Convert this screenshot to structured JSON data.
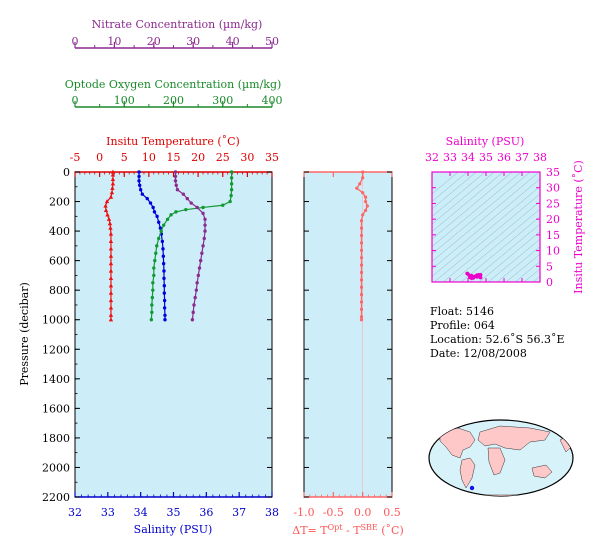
{
  "chart_data": [
    {
      "type": "line",
      "panel": "main-profile",
      "ylabel": "Pressure (decibar)",
      "ylim": [
        2200,
        0
      ],
      "yticks": [
        0,
        200,
        400,
        600,
        800,
        1000,
        1200,
        1400,
        1600,
        1800,
        2000,
        2200
      ],
      "axes": {
        "nitrate": {
          "label": "Nitrate Concentration (µm/kg)",
          "range": [
            0,
            50
          ],
          "ticks": [
            0,
            10,
            20,
            30,
            40,
            50
          ],
          "color": "#8b2a8f"
        },
        "oxygen": {
          "label": "Optode Oxygen Concentration (µm/kg)",
          "range": [
            0,
            400
          ],
          "ticks": [
            0,
            100,
            200,
            300,
            400
          ],
          "color": "#1a8a2a"
        },
        "temperature": {
          "label": "Insitu Temperature (˚C)",
          "range": [
            -5,
            35
          ],
          "ticks": [
            -5,
            0,
            5,
            10,
            15,
            20,
            25,
            30,
            35
          ],
          "color": "#dd0000"
        },
        "salinity": {
          "label": "Salinity (PSU)",
          "range": [
            32,
            38
          ],
          "ticks": [
            32,
            33,
            34,
            35,
            36,
            37,
            38
          ],
          "color": "#0000cc"
        }
      },
      "series": [
        {
          "axis": "temperature",
          "color": "#ee1111",
          "marker": "triangle",
          "points": [
            [
              2.7,
              0
            ],
            [
              2.7,
              20
            ],
            [
              2.7,
              50
            ],
            [
              2.7,
              80
            ],
            [
              2.6,
              110
            ],
            [
              2.5,
              140
            ],
            [
              2.3,
              170
            ],
            [
              1.5,
              200
            ],
            [
              1.2,
              230
            ],
            [
              1.3,
              260
            ],
            [
              1.6,
              290
            ],
            [
              1.9,
              320
            ],
            [
              2.1,
              350
            ],
            [
              2.2,
              380
            ],
            [
              2.3,
              420
            ],
            [
              2.3,
              470
            ],
            [
              2.3,
              520
            ],
            [
              2.3,
              570
            ],
            [
              2.3,
              620
            ],
            [
              2.3,
              670
            ],
            [
              2.3,
              720
            ],
            [
              2.3,
              770
            ],
            [
              2.3,
              820
            ],
            [
              2.3,
              870
            ],
            [
              2.3,
              920
            ],
            [
              2.3,
              970
            ],
            [
              2.3,
              1000
            ]
          ]
        },
        {
          "axis": "salinity",
          "color": "#0000dd",
          "marker": "circle",
          "points": [
            [
              33.95,
              0
            ],
            [
              33.95,
              30
            ],
            [
              33.95,
              60
            ],
            [
              33.97,
              90
            ],
            [
              34.0,
              120
            ],
            [
              34.05,
              150
            ],
            [
              34.2,
              180
            ],
            [
              34.3,
              210
            ],
            [
              34.38,
              240
            ],
            [
              34.42,
              270
            ],
            [
              34.5,
              300
            ],
            [
              34.55,
              340
            ],
            [
              34.6,
              380
            ],
            [
              34.63,
              420
            ],
            [
              34.66,
              470
            ],
            [
              34.68,
              520
            ],
            [
              34.69,
              570
            ],
            [
              34.7,
              620
            ],
            [
              34.71,
              670
            ],
            [
              34.71,
              720
            ],
            [
              34.72,
              770
            ],
            [
              34.72,
              820
            ],
            [
              34.73,
              870
            ],
            [
              34.73,
              920
            ],
            [
              34.74,
              970
            ],
            [
              34.74,
              1000
            ]
          ]
        },
        {
          "axis": "oxygen",
          "color": "#119933",
          "marker": "circle",
          "points": [
            [
              318,
              0
            ],
            [
              318,
              40
            ],
            [
              318,
              80
            ],
            [
              318,
              120
            ],
            [
              317,
              160
            ],
            [
              315,
              200
            ],
            [
              300,
              225
            ],
            [
              260,
              240
            ],
            [
              225,
              255
            ],
            [
              205,
              270
            ],
            [
              195,
              290
            ],
            [
              188,
              320
            ],
            [
              180,
              360
            ],
            [
              175,
              400
            ],
            [
              170,
              450
            ],
            [
              166,
              500
            ],
            [
              164,
              550
            ],
            [
              162,
              600
            ],
            [
              160,
              650
            ],
            [
              160,
              700
            ],
            [
              158,
              750
            ],
            [
              158,
              800
            ],
            [
              157,
              850
            ],
            [
              156,
              900
            ],
            [
              156,
              950
            ],
            [
              155,
              1000
            ]
          ]
        },
        {
          "axis": "nitrate",
          "color": "#8b2a8f",
          "marker": "circle",
          "points": [
            [
              25.5,
              0
            ],
            [
              25.5,
              30
            ],
            [
              25.5,
              60
            ],
            [
              25.7,
              90
            ],
            [
              26,
              120
            ],
            [
              27.5,
              150
            ],
            [
              28.5,
              180
            ],
            [
              29.5,
              210
            ],
            [
              31,
              240
            ],
            [
              32.5,
              280
            ],
            [
              33,
              320
            ],
            [
              33,
              360
            ],
            [
              33,
              400
            ],
            [
              32.8,
              450
            ],
            [
              32.5,
              500
            ],
            [
              32.2,
              550
            ],
            [
              31.9,
              600
            ],
            [
              31.6,
              650
            ],
            [
              31.3,
              700
            ],
            [
              31,
              750
            ],
            [
              30.8,
              800
            ],
            [
              30.5,
              850
            ],
            [
              30.2,
              900
            ],
            [
              30,
              950
            ],
            [
              29.8,
              1000
            ]
          ]
        }
      ]
    },
    {
      "type": "line",
      "panel": "temperature-difference",
      "xlabel": "ΔT= T",
      "xlabel_sup1": "Opt",
      "xlabel_mid": " - T",
      "xlabel_sup2": "SBE",
      "xlabel_end": " (˚C)",
      "xlim": [
        -1.0,
        0.5
      ],
      "xticks": [
        "-1.0",
        "-0.5",
        "0.0",
        "0.5"
      ],
      "ylim": [
        2200,
        0
      ],
      "series": [
        {
          "color": "#ff6666",
          "marker": "circle",
          "points": [
            [
              0.0,
              0
            ],
            [
              0.0,
              40
            ],
            [
              -0.05,
              80
            ],
            [
              -0.1,
              110
            ],
            [
              0.0,
              140
            ],
            [
              0.05,
              170
            ],
            [
              0.05,
              200
            ],
            [
              0.08,
              230
            ],
            [
              0.05,
              260
            ],
            [
              0.0,
              290
            ],
            [
              -0.02,
              330
            ],
            [
              -0.02,
              380
            ],
            [
              -0.02,
              430
            ],
            [
              -0.02,
              480
            ],
            [
              -0.02,
              530
            ],
            [
              -0.02,
              580
            ],
            [
              -0.02,
              630
            ],
            [
              -0.02,
              680
            ],
            [
              -0.02,
              730
            ],
            [
              -0.02,
              780
            ],
            [
              -0.02,
              830
            ],
            [
              -0.02,
              880
            ],
            [
              -0.02,
              930
            ],
            [
              -0.02,
              980
            ],
            [
              -0.02,
              1000
            ]
          ]
        }
      ]
    },
    {
      "type": "scatter",
      "panel": "ts-diagram",
      "title": "Salinity (PSU)",
      "ylabel": "Insitu Temperature (˚C)",
      "xlim": [
        32,
        38
      ],
      "ylim": [
        0,
        35
      ],
      "xticks": [
        32,
        33,
        34,
        35,
        36,
        37,
        38
      ],
      "yticks": [
        0,
        5,
        10,
        15,
        20,
        25,
        30,
        35
      ],
      "color": "#ee00cc",
      "points": [
        [
          34.7,
          2.3
        ],
        [
          34.6,
          2.3
        ],
        [
          34.5,
          2.2
        ],
        [
          34.4,
          1.8
        ],
        [
          34.3,
          1.3
        ],
        [
          34.2,
          1.2
        ],
        [
          34.1,
          1.5
        ],
        [
          34.0,
          2.5
        ],
        [
          33.97,
          2.7
        ],
        [
          33.95,
          2.7
        ],
        [
          34.2,
          2.0
        ],
        [
          34.5,
          1.6
        ],
        [
          34.7,
          1.4
        ]
      ]
    }
  ],
  "info": {
    "float": "Float:  5146",
    "profile": "Profile:  064",
    "location": "Location:  52.6˚S  56.3˚E",
    "date": "Date:  12/08/2008"
  },
  "map": {
    "marker_color": "#1111ee"
  }
}
